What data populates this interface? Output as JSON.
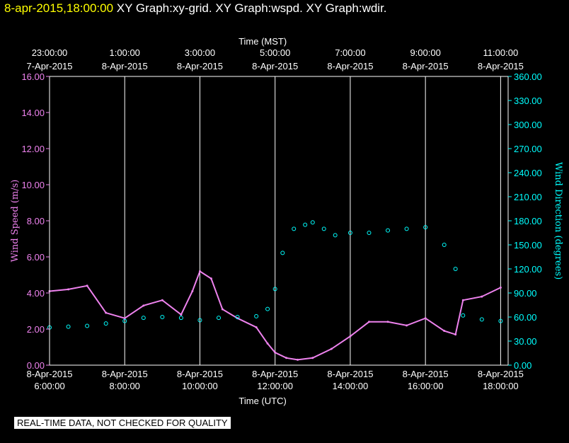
{
  "header": {
    "timestamp": "8-apr-2015,18:00:00",
    "graphs": "XY Graph:xy-grid.  XY Graph:wspd.  XY Graph:wdir."
  },
  "footer": {
    "notice": "REAL-TIME DATA, NOT CHECKED FOR QUALITY"
  },
  "chart_data": {
    "type": "scatter",
    "x_top_title": "Time (MST)",
    "x_bottom_title": "Time (UTC)",
    "y_left_title": "Wind Speed (m/s)",
    "y_right_title": "Wind Direction (degrees)",
    "x_range_utc_hours": [
      6,
      18.2
    ],
    "ylim_left": [
      0,
      16
    ],
    "ylim_right": [
      0,
      360
    ],
    "left_ticks": [
      "0.00",
      "2.00",
      "4.00",
      "6.00",
      "8.00",
      "10.00",
      "12.00",
      "14.00",
      "16.00"
    ],
    "right_ticks": [
      "0.00",
      "30.00",
      "60.00",
      "90.00",
      "120.00",
      "150.00",
      "180.00",
      "210.00",
      "240.00",
      "270.00",
      "300.00",
      "330.00",
      "360.00"
    ],
    "bottom_ticks": [
      {
        "date": "8-Apr-2015",
        "time": "6:00:00"
      },
      {
        "date": "8-Apr-2015",
        "time": "8:00:00"
      },
      {
        "date": "8-Apr-2015",
        "time": "10:00:00"
      },
      {
        "date": "8-Apr-2015",
        "time": "12:00:00"
      },
      {
        "date": "8-Apr-2015",
        "time": "14:00:00"
      },
      {
        "date": "8-Apr-2015",
        "time": "16:00:00"
      },
      {
        "date": "8-Apr-2015",
        "time": "18:00:00"
      }
    ],
    "top_ticks": [
      {
        "time": "23:00:00",
        "date": "7-Apr-2015"
      },
      {
        "time": "1:00:00",
        "date": "8-Apr-2015"
      },
      {
        "time": "3:00:00",
        "date": "8-Apr-2015"
      },
      {
        "time": "5:00:00",
        "date": "8-Apr-2015"
      },
      {
        "time": "7:00:00",
        "date": "8-Apr-2015"
      },
      {
        "time": "9:00:00",
        "date": "8-Apr-2015"
      },
      {
        "time": "11:00:00",
        "date": "8-Apr-2015"
      }
    ],
    "series": [
      {
        "name": "wspd",
        "color": "#ee82ee",
        "axis": "left",
        "x": [
          6.0,
          6.5,
          7.0,
          7.5,
          8.0,
          8.5,
          9.0,
          9.5,
          9.8,
          10.0,
          10.3,
          10.6,
          11.0,
          11.5,
          11.8,
          12.0,
          12.3,
          12.6,
          13.0,
          13.5,
          14.0,
          14.5,
          15.0,
          15.5,
          16.0,
          16.5,
          16.8,
          17.0,
          17.5,
          18.0
        ],
        "values": [
          4.1,
          4.2,
          4.4,
          2.9,
          2.6,
          3.3,
          3.6,
          2.8,
          4.1,
          5.2,
          4.8,
          3.1,
          2.6,
          2.1,
          1.2,
          0.7,
          0.4,
          0.3,
          0.4,
          0.9,
          1.6,
          2.4,
          2.4,
          2.2,
          2.6,
          1.9,
          1.7,
          3.6,
          3.8,
          4.3
        ]
      },
      {
        "name": "wdir",
        "color": "#00ffff",
        "axis": "right",
        "x": [
          6.0,
          6.5,
          7.0,
          7.5,
          8.0,
          8.5,
          9.0,
          9.5,
          10.0,
          10.5,
          11.0,
          11.5,
          11.8,
          12.0,
          12.2,
          12.5,
          12.8,
          13.0,
          13.3,
          13.6,
          14.0,
          14.5,
          15.0,
          15.5,
          16.0,
          16.5,
          16.8,
          17.0,
          17.5,
          18.0
        ],
        "values": [
          47,
          48,
          49,
          52,
          55,
          59,
          60,
          59,
          56,
          59,
          60,
          61,
          70,
          95,
          140,
          170,
          175,
          178,
          170,
          162,
          165,
          165,
          168,
          170,
          172,
          150,
          120,
          62,
          57,
          55
        ]
      }
    ],
    "grid": true
  }
}
